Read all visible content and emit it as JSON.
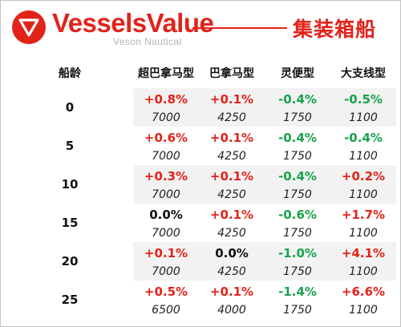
{
  "header": {
    "brand": "VesselsValue",
    "sub_brand": "Veson Nautical",
    "title": "集装箱船",
    "accent_color": "#e2231a",
    "logo_icon": "vesselsvalue-logo-icon"
  },
  "table": {
    "age_header": "船龄",
    "columns": [
      "超巴拿马型",
      "巴拿马型",
      "灵便型",
      "大支线型"
    ],
    "rows": [
      {
        "age": "0",
        "changes": [
          "+0.8%",
          "+0.1%",
          "-0.4%",
          "-0.5%"
        ],
        "values": [
          "7000",
          "4250",
          "1750",
          "1100"
        ]
      },
      {
        "age": "5",
        "changes": [
          "+0.6%",
          "+0.1%",
          "-0.4%",
          "-0.4%"
        ],
        "values": [
          "7000",
          "4250",
          "1750",
          "1100"
        ]
      },
      {
        "age": "10",
        "changes": [
          "+0.3%",
          "+0.1%",
          "-0.4%",
          "+0.2%"
        ],
        "values": [
          "7000",
          "4250",
          "1750",
          "1100"
        ]
      },
      {
        "age": "15",
        "changes": [
          "0.0%",
          "+0.1%",
          "-0.6%",
          "+1.7%"
        ],
        "values": [
          "7000",
          "4250",
          "1750",
          "1100"
        ]
      },
      {
        "age": "20",
        "changes": [
          "+0.1%",
          "0.0%",
          "-1.0%",
          "+4.1%"
        ],
        "values": [
          "7000",
          "4250",
          "1750",
          "1100"
        ]
      },
      {
        "age": "25",
        "changes": [
          "+0.5%",
          "+0.1%",
          "-1.4%",
          "+6.6%"
        ],
        "values": [
          "6500",
          "4000",
          "1750",
          "1100"
        ]
      }
    ],
    "colors": {
      "positive": "#e2231a",
      "negative": "#17a34a",
      "neutral": "#111111",
      "stripe": "#f2f2f2"
    }
  }
}
